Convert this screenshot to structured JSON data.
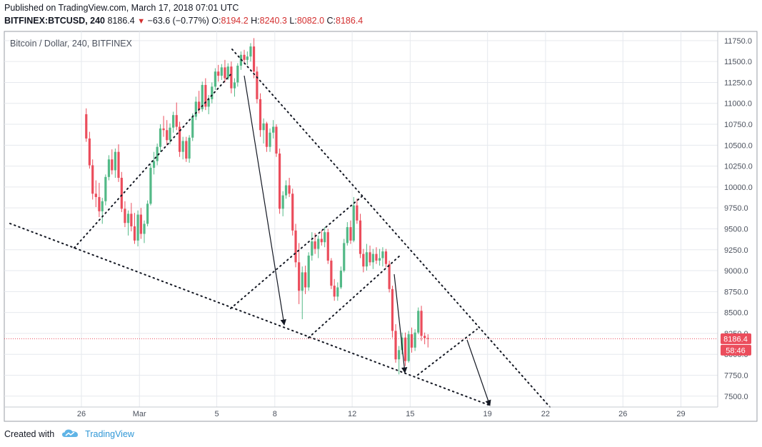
{
  "header": {
    "published": "Published on TradingView.com, March 17, 2018 07:01 UTC",
    "symbol": "BITFINEX:BTCUSD, 240",
    "last": "8186.4",
    "change_arrow": "▼",
    "change": "−63.6 (−0.77%)",
    "o_label": "O:",
    "o_value": "8194.2",
    "h_label": "H:",
    "h_value": "8240.3",
    "l_label": "L:",
    "l_value": "8082.0",
    "c_label": "C:",
    "c_value": "8186.4"
  },
  "footer": {
    "created_with": "Created with",
    "brand": "TradingView",
    "logo_icon": "tradingview-cloud-icon"
  },
  "colors": {
    "up": "#53b987",
    "down": "#eb4d5c",
    "grid": "#e6e9ee",
    "axis_text": "#4c525e",
    "price_line": "#eb4d5c"
  },
  "chart_data": {
    "type": "candlestick",
    "title": "Bitcoin / Dollar, 240, BITFINEX",
    "interval": "240",
    "ylim": [
      7370,
      11860
    ],
    "y_ticks": [
      7500,
      7750,
      8000,
      8250,
      8500,
      8750,
      9000,
      9250,
      9500,
      9750,
      10000,
      10250,
      10500,
      10750,
      11000,
      11250,
      11500,
      11750
    ],
    "y_tick_labels": [
      "7500.0",
      "7750.0",
      "8000.0",
      "8250.0",
      "8500.0",
      "8750.0",
      "9000.0",
      "9250.0",
      "9500.0",
      "9750.0",
      "10000.0",
      "10250.0",
      "10500.0",
      "10750.0",
      "11000.0",
      "11250.0",
      "11500.0",
      "11750.0"
    ],
    "x_ticks": [
      {
        "label": "26",
        "day": 0
      },
      {
        "label": "Mar",
        "day": 3
      },
      {
        "label": "5",
        "day": 7
      },
      {
        "label": "8",
        "day": 10
      },
      {
        "label": "12",
        "day": 14
      },
      {
        "label": "15",
        "day": 17
      },
      {
        "label": "19",
        "day": 21
      },
      {
        "label": "22",
        "day": 24
      },
      {
        "label": "26",
        "day": 28
      },
      {
        "label": "29",
        "day": 31
      }
    ],
    "last_price_label": "8186.4",
    "countdown_label": "58:46",
    "candles": [
      [
        8.25,
        10870,
        10940,
        10540,
        10580
      ],
      [
        8.42,
        10580,
        10660,
        10220,
        10260
      ],
      [
        8.58,
        10260,
        10330,
        9850,
        9920
      ],
      [
        8.75,
        9920,
        10080,
        9760,
        9880
      ],
      [
        8.92,
        9880,
        10050,
        9640,
        9710
      ],
      [
        9.08,
        9710,
        9870,
        9560,
        9830
      ],
      [
        9.25,
        9830,
        10150,
        9780,
        10120
      ],
      [
        9.42,
        10120,
        10380,
        10080,
        10330
      ],
      [
        9.58,
        10330,
        10450,
        10150,
        10200
      ],
      [
        9.75,
        10200,
        10460,
        10110,
        10420
      ],
      [
        9.92,
        10420,
        10510,
        10060,
        10110
      ],
      [
        10.08,
        10110,
        10180,
        9700,
        9740
      ],
      [
        10.25,
        9740,
        9830,
        9520,
        9570
      ],
      [
        10.42,
        9570,
        9720,
        9420,
        9680
      ],
      [
        10.58,
        9680,
        9810,
        9470,
        9530
      ],
      [
        10.75,
        9530,
        9690,
        9320,
        9360
      ],
      [
        10.92,
        9360,
        9720,
        9290,
        9670
      ],
      [
        11.08,
        9670,
        9750,
        9380,
        9440
      ],
      [
        11.25,
        9440,
        9600,
        9330,
        9560
      ],
      [
        11.42,
        9560,
        9840,
        9530,
        9800
      ],
      [
        11.58,
        9800,
        10280,
        9780,
        10230
      ],
      [
        11.75,
        10230,
        10420,
        10150,
        10310
      ],
      [
        11.92,
        10310,
        10520,
        10260,
        10480
      ],
      [
        12.08,
        10480,
        10750,
        10420,
        10700
      ],
      [
        12.25,
        10700,
        10850,
        10600,
        10680
      ],
      [
        12.42,
        10680,
        10800,
        10500,
        10560
      ],
      [
        12.58,
        10560,
        10760,
        10510,
        10710
      ],
      [
        12.75,
        10710,
        10900,
        10650,
        10860
      ],
      [
        12.92,
        10860,
        11010,
        10680,
        10720
      ],
      [
        13.08,
        10720,
        10780,
        10360,
        10420
      ],
      [
        13.25,
        10420,
        10600,
        10330,
        10550
      ],
      [
        13.42,
        10550,
        10600,
        10300,
        10340
      ],
      [
        13.58,
        10340,
        10620,
        10290,
        10590
      ],
      [
        13.75,
        10590,
        10880,
        10550,
        10840
      ],
      [
        13.92,
        10840,
        11080,
        10800,
        11020
      ],
      [
        14.08,
        11020,
        11150,
        10880,
        10930
      ],
      [
        14.25,
        10930,
        11260,
        10900,
        11220
      ],
      [
        14.42,
        11220,
        11300,
        10920,
        10960
      ],
      [
        14.58,
        10960,
        11100,
        10870,
        11050
      ],
      [
        14.75,
        11050,
        11250,
        11000,
        11200
      ],
      [
        14.92,
        11200,
        11420,
        11160,
        11380
      ],
      [
        15.08,
        11380,
        11460,
        11260,
        11330
      ],
      [
        15.25,
        11330,
        11470,
        11280,
        11430
      ],
      [
        15.42,
        11430,
        11520,
        11250,
        11300
      ],
      [
        15.58,
        11300,
        11480,
        11280,
        11440
      ],
      [
        15.75,
        11440,
        11500,
        11120,
        11180
      ],
      [
        15.92,
        11180,
        11300,
        11080,
        11250
      ],
      [
        16.08,
        11250,
        11480,
        11200,
        11450
      ],
      [
        16.25,
        11450,
        11620,
        11400,
        11580
      ],
      [
        16.42,
        11580,
        11640,
        11480,
        11520
      ],
      [
        16.58,
        11520,
        11620,
        11460,
        11560
      ],
      [
        16.75,
        11560,
        11720,
        11500,
        11680
      ],
      [
        16.92,
        11680,
        11780,
        11300,
        11380
      ],
      [
        17.08,
        11380,
        11440,
        11000,
        11050
      ],
      [
        17.25,
        11050,
        11120,
        10600,
        10680
      ],
      [
        17.42,
        10680,
        10820,
        10520,
        10760
      ],
      [
        17.58,
        10760,
        10780,
        10420,
        10480
      ],
      [
        17.75,
        10480,
        10700,
        10420,
        10650
      ],
      [
        17.92,
        10650,
        10800,
        10580,
        10720
      ],
      [
        18.08,
        10720,
        10750,
        10360,
        10400
      ],
      [
        18.25,
        10400,
        10460,
        9680,
        9740
      ],
      [
        18.42,
        9740,
        9950,
        9650,
        9900
      ],
      [
        18.58,
        9900,
        10080,
        9860,
        10020
      ],
      [
        18.75,
        10020,
        10110,
        9880,
        9920
      ],
      [
        18.92,
        9920,
        9980,
        9420,
        9480
      ],
      [
        19.08,
        9480,
        9560,
        9040,
        9100
      ],
      [
        19.25,
        9100,
        9330,
        8600,
        8760
      ],
      [
        19.42,
        8760,
        9050,
        8420,
        8980
      ],
      [
        19.58,
        8980,
        9060,
        8720,
        8800
      ],
      [
        19.75,
        8800,
        9220,
        8760,
        9180
      ],
      [
        19.92,
        9180,
        9460,
        9120,
        9350
      ],
      [
        20.08,
        9350,
        9450,
        9200,
        9260
      ],
      [
        20.25,
        9260,
        9420,
        9150,
        9380
      ],
      [
        20.42,
        9380,
        9480,
        9300,
        9340
      ],
      [
        20.58,
        9340,
        9520,
        9280,
        9460
      ],
      [
        20.75,
        9460,
        9500,
        9080,
        9120
      ],
      [
        20.92,
        9120,
        9150,
        8780,
        8820
      ],
      [
        21.08,
        8820,
        8900,
        8640,
        8690
      ],
      [
        21.25,
        8690,
        8860,
        8640,
        8800
      ],
      [
        21.42,
        8800,
        9050,
        8780,
        9000
      ],
      [
        21.58,
        9000,
        9380,
        8980,
        9330
      ],
      [
        21.75,
        9330,
        9580,
        9300,
        9520
      ],
      [
        21.92,
        9520,
        9600,
        9320,
        9360
      ],
      [
        22.08,
        9360,
        9880,
        9340,
        9780
      ],
      [
        22.25,
        9780,
        9860,
        9560,
        9600
      ],
      [
        22.42,
        9600,
        9680,
        9150,
        9200
      ],
      [
        22.58,
        9200,
        9260,
        8980,
        9050
      ],
      [
        22.75,
        9050,
        9320,
        9000,
        9220
      ],
      [
        22.92,
        9220,
        9300,
        9060,
        9100
      ],
      [
        23.08,
        9100,
        9260,
        9020,
        9200
      ],
      [
        23.25,
        9200,
        9280,
        9080,
        9120
      ],
      [
        23.42,
        9120,
        9260,
        9060,
        9150
      ],
      [
        23.58,
        9150,
        9280,
        9050,
        9230
      ],
      [
        23.75,
        9230,
        9260,
        9040,
        9080
      ],
      [
        23.92,
        9080,
        9120,
        8740,
        8780
      ],
      [
        24.08,
        8780,
        8820,
        8200,
        8280
      ],
      [
        24.25,
        8280,
        8360,
        7900,
        7940
      ],
      [
        24.42,
        7940,
        8100,
        7760,
        8050
      ],
      [
        24.58,
        8050,
        8260,
        8000,
        8200
      ],
      [
        24.75,
        8200,
        8260,
        7860,
        7920
      ],
      [
        24.92,
        7920,
        8280,
        7900,
        8240
      ],
      [
        25.08,
        8240,
        8320,
        8020,
        8080
      ],
      [
        25.25,
        8080,
        8300,
        8040,
        8260
      ],
      [
        25.42,
        8260,
        8560,
        8240,
        8520
      ],
      [
        25.58,
        8520,
        8580,
        8160,
        8220
      ],
      [
        25.75,
        8220,
        8260,
        8120,
        8194
      ],
      [
        25.92,
        8194,
        8240,
        8082,
        8186
      ]
    ]
  }
}
